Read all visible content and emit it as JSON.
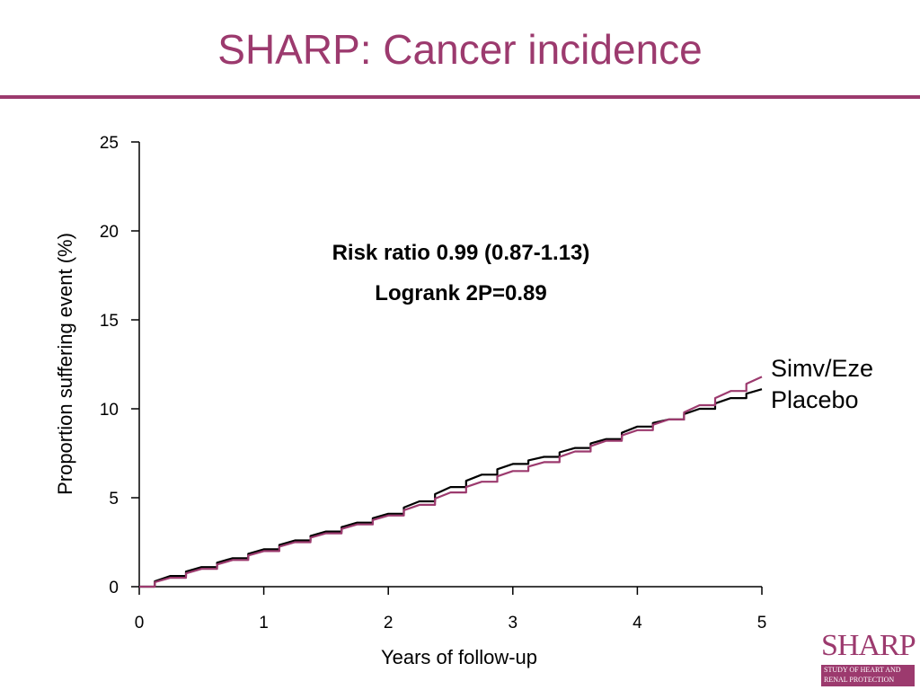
{
  "slide": {
    "title": "SHARP: Cancer incidence"
  },
  "colors": {
    "accent": "#9c3a6e",
    "simv_eze": "#9c3a6e",
    "placebo": "#000000"
  },
  "logo": {
    "word": "SHARP",
    "line1": "STUDY OF HEART AND",
    "line2": "RENAL PROTECTION"
  },
  "chart_data": {
    "type": "line",
    "title": "",
    "xlabel": "Years of follow-up",
    "ylabel": "Proportion suffering event (%)",
    "xlim": [
      0,
      5
    ],
    "ylim": [
      0,
      25
    ],
    "xticks": [
      0,
      1,
      2,
      3,
      4,
      5
    ],
    "yticks": [
      0,
      5,
      10,
      15,
      20,
      25
    ],
    "grid": false,
    "annotations": [
      "Risk ratio 0.99 (0.87-1.13)",
      "Logrank 2P=0.89"
    ],
    "series": [
      {
        "name": "Simv/Eze",
        "color": "#9c3a6e",
        "x": [
          0,
          0.25,
          0.5,
          0.75,
          1.0,
          1.25,
          1.5,
          1.75,
          2.0,
          2.25,
          2.5,
          2.75,
          3.0,
          3.25,
          3.5,
          3.75,
          4.0,
          4.25,
          4.5,
          4.75,
          5.0
        ],
        "y": [
          0,
          0.5,
          1.0,
          1.5,
          2.0,
          2.5,
          3.0,
          3.5,
          4.0,
          4.6,
          5.3,
          5.9,
          6.5,
          7.0,
          7.6,
          8.2,
          8.8,
          9.4,
          10.2,
          11.0,
          11.8
        ]
      },
      {
        "name": "Placebo",
        "color": "#000000",
        "x": [
          0,
          0.25,
          0.5,
          0.75,
          1.0,
          1.25,
          1.5,
          1.75,
          2.0,
          2.25,
          2.5,
          2.75,
          3.0,
          3.25,
          3.5,
          3.75,
          4.0,
          4.25,
          4.5,
          4.75,
          5.0
        ],
        "y": [
          0,
          0.6,
          1.1,
          1.6,
          2.1,
          2.6,
          3.1,
          3.6,
          4.1,
          4.8,
          5.6,
          6.3,
          6.9,
          7.3,
          7.8,
          8.3,
          9.0,
          9.4,
          10.0,
          10.6,
          11.1
        ]
      }
    ]
  }
}
